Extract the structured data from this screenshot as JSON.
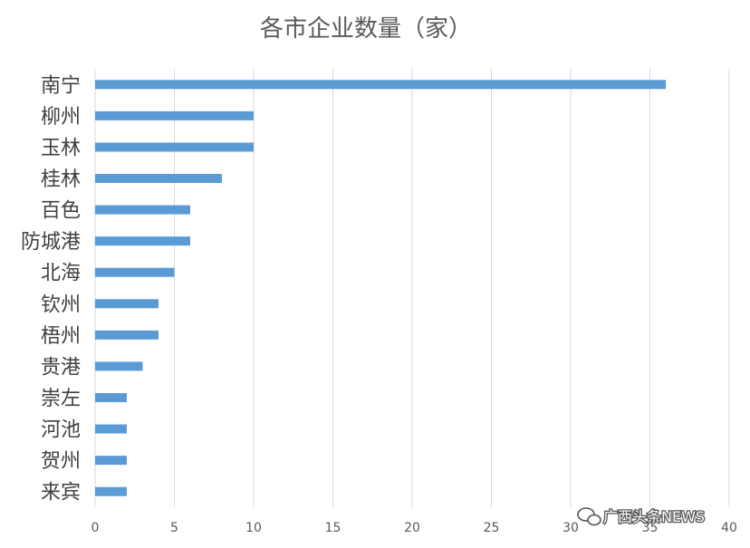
{
  "chart_data": {
    "type": "bar",
    "orientation": "horizontal",
    "title": "各市企业数量（家）",
    "categories": [
      "南宁",
      "柳州",
      "玉林",
      "桂林",
      "百色",
      "防城港",
      "北海",
      "钦州",
      "梧州",
      "贵港",
      "崇左",
      "河池",
      "贺州",
      "来宾"
    ],
    "values": [
      36,
      10,
      10,
      8,
      6,
      6,
      5,
      4,
      4,
      3,
      2,
      2,
      2,
      2
    ],
    "xlim": [
      0,
      40
    ],
    "xticks": [
      0,
      5,
      10,
      15,
      20,
      25,
      30,
      35,
      40
    ],
    "grid": true,
    "bar_color": "#5B9BD5"
  },
  "watermark": {
    "text": "广西头条NEWS",
    "icon": "wechat-bubble-icon"
  }
}
